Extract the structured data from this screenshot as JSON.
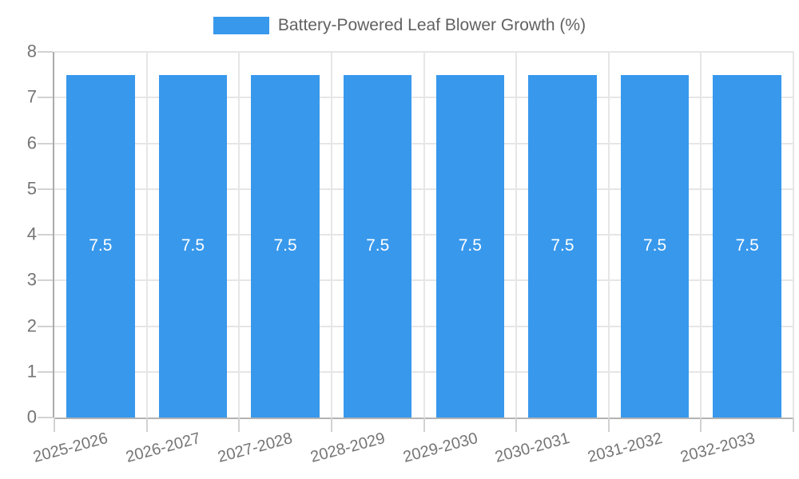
{
  "legend": {
    "label": "Battery-Powered Leaf Blower Growth (%)"
  },
  "chart_data": {
    "type": "bar",
    "title": "",
    "legend_position": "top",
    "grid": true,
    "categories": [
      "2025-2026",
      "2026-2027",
      "2027-2028",
      "2028-2029",
      "2029-2030",
      "2030-2031",
      "2031-2032",
      "2032-2033"
    ],
    "series": [
      {
        "name": "Battery-Powered Leaf Blower Growth (%)",
        "color": "#3898ec",
        "values": [
          7.5,
          7.5,
          7.5,
          7.5,
          7.5,
          7.5,
          7.5,
          7.5
        ]
      }
    ],
    "value_labels": [
      "7.5",
      "7.5",
      "7.5",
      "7.5",
      "7.5",
      "7.5",
      "7.5",
      "7.5"
    ],
    "xlabel": "",
    "ylabel": "",
    "ylim": [
      0,
      8
    ],
    "yticks": [
      "0",
      "1",
      "2",
      "3",
      "4",
      "5",
      "6",
      "7",
      "8"
    ],
    "colors": {
      "bar": "#3898ec",
      "bar_label": "#ffffff",
      "axis_line": "#b0b0b0",
      "gridline": "#e6e6e6",
      "tick_mark": "#d2d2d2",
      "tick_label": "#757575",
      "legend_text": "#616161",
      "background": "#ffffff"
    }
  }
}
